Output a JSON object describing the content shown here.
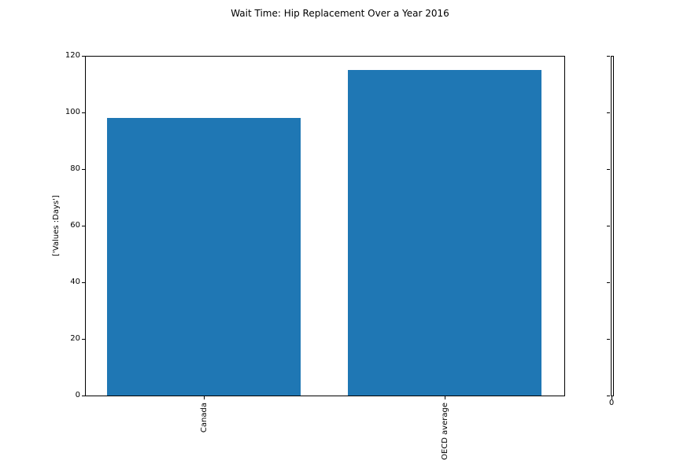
{
  "chart_data": {
    "type": "bar",
    "title": "Wait Time: Hip Replacement Over a Year 2016",
    "xlabel": "",
    "ylabel": "['Values :Days']",
    "categories": [
      "Canada",
      "OECD average"
    ],
    "values": [
      98,
      115
    ],
    "ylim": [
      0,
      120
    ],
    "yticks": [
      0,
      20,
      40,
      60,
      80,
      100,
      120
    ],
    "grid": false,
    "legend": null,
    "bar_color": "#1f77b4",
    "secondary_axis": {
      "description": "empty narrow axes at right with unlabeled y ticks",
      "tick_label": "0"
    }
  }
}
